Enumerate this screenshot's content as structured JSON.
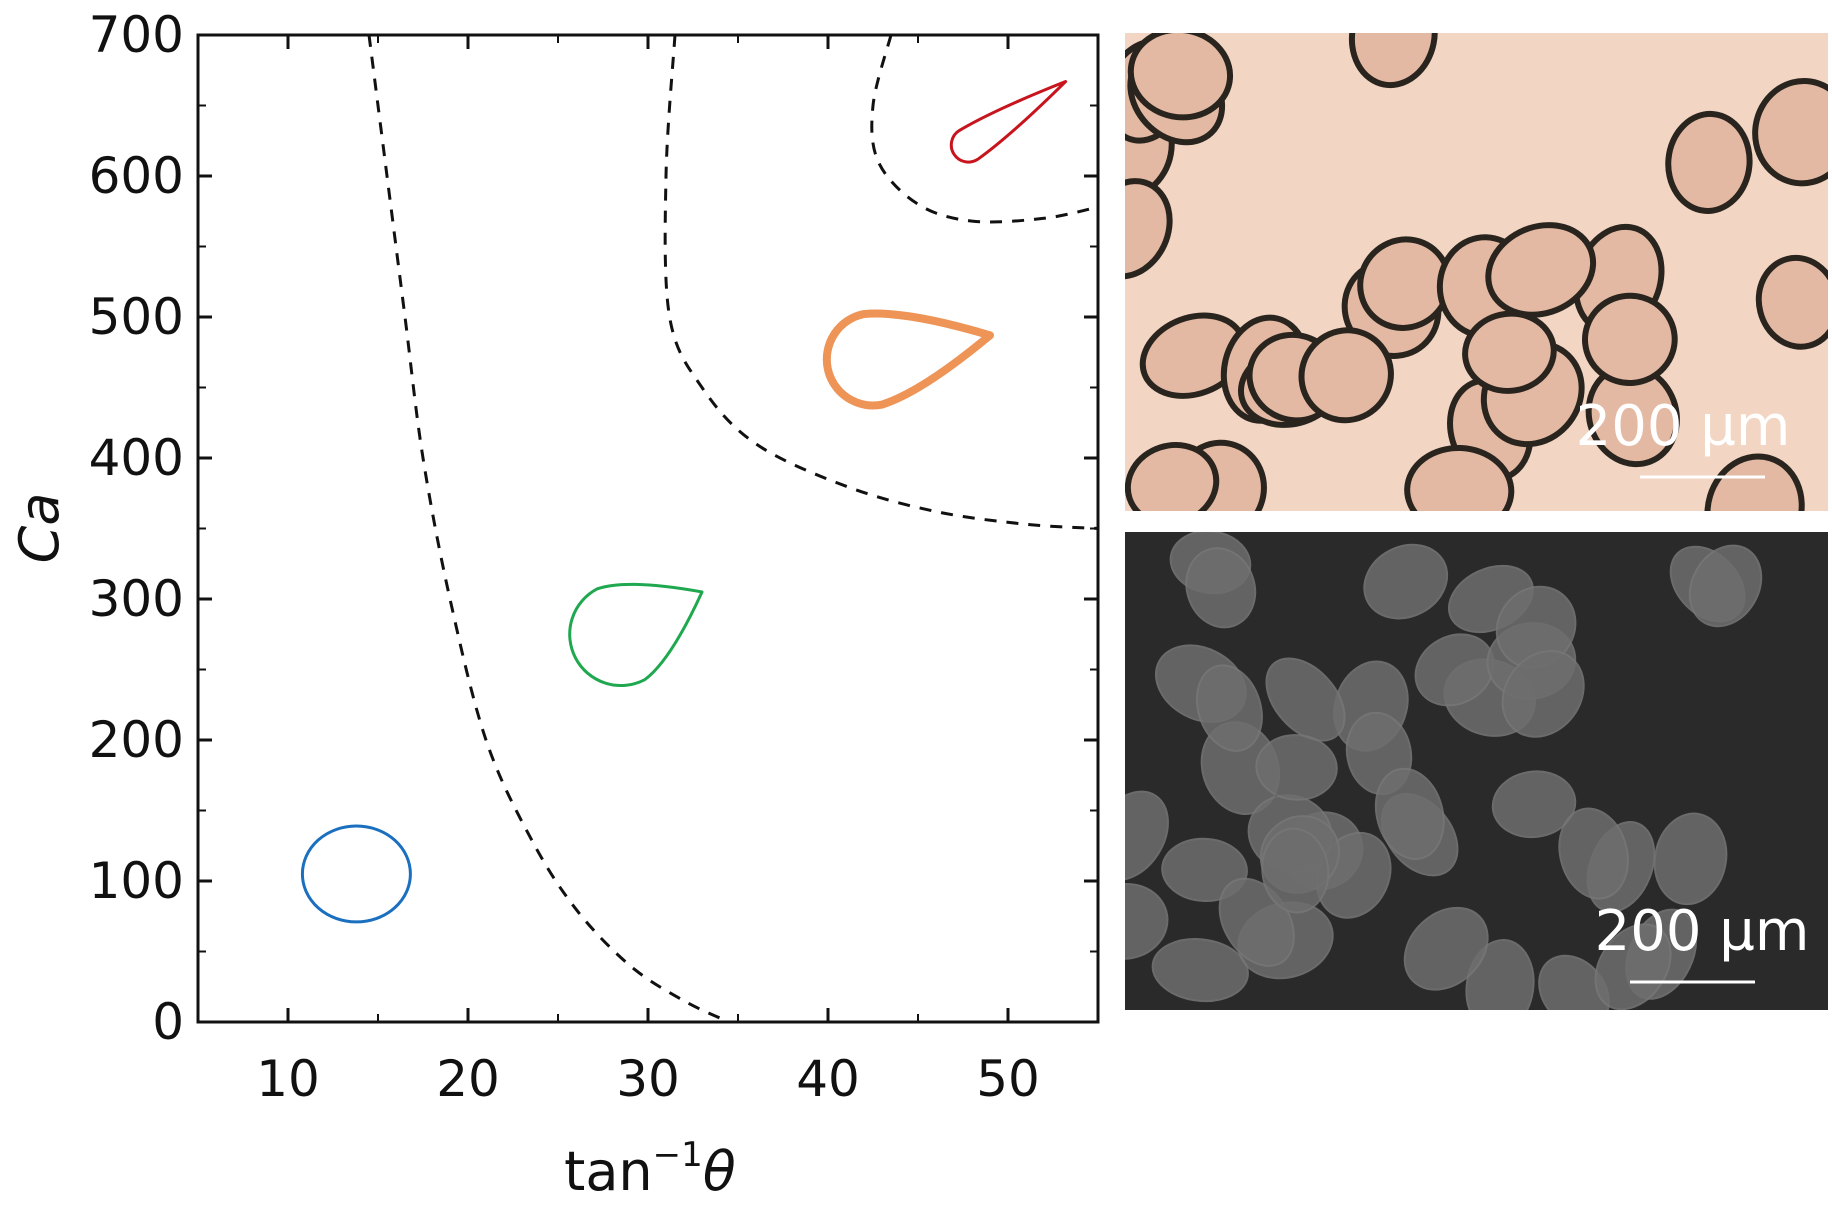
{
  "chart_data": {
    "type": "scatter",
    "xlabel_base": "tan",
    "xlabel_sup": "−1",
    "xlabel_sym": "θ",
    "ylabel": "Ca",
    "xlim": [
      5,
      55
    ],
    "ylim": [
      0,
      700
    ],
    "xticks": [
      10,
      20,
      30,
      40,
      50
    ],
    "yticks": [
      0,
      100,
      200,
      300,
      400,
      500,
      600,
      700
    ],
    "grid": false,
    "boundaries": [
      {
        "style": "dashed",
        "points": [
          [
            14.5,
            700
          ],
          [
            15.5,
            600
          ],
          [
            16.5,
            500
          ],
          [
            17.5,
            400
          ],
          [
            19,
            300
          ],
          [
            21,
            200
          ],
          [
            23.5,
            130
          ],
          [
            26,
            80
          ],
          [
            29,
            40
          ],
          [
            32,
            15
          ],
          [
            34.5,
            0
          ]
        ]
      },
      {
        "style": "dashed",
        "points": [
          [
            31.5,
            700
          ],
          [
            31,
            600
          ],
          [
            31.2,
            500
          ],
          [
            33,
            450
          ],
          [
            36,
            410
          ],
          [
            41,
            380
          ],
          [
            46,
            362
          ],
          [
            51,
            353
          ],
          [
            55,
            350
          ]
        ]
      },
      {
        "style": "dashed",
        "points": [
          [
            43.5,
            700
          ],
          [
            42.5,
            650
          ],
          [
            42.8,
            610
          ],
          [
            45,
            580
          ],
          [
            48,
            568
          ],
          [
            52,
            570
          ],
          [
            55,
            578
          ]
        ]
      }
    ],
    "shapes": [
      {
        "color": "#1a6fbf",
        "shape": "circle",
        "center": [
          13.8,
          105
        ],
        "rx": 3.0,
        "ry": 34,
        "stroke": 3
      },
      {
        "color": "#1fa84f",
        "shape": "teardrop",
        "center": [
          28.5,
          275
        ],
        "rx": 3.0,
        "ry": 36,
        "tip": [
          33,
          305
        ],
        "stroke": 3
      },
      {
        "color": "#ee9457",
        "shape": "teardrop",
        "center": [
          42.5,
          470
        ],
        "rx": 2.7,
        "ry": 21,
        "tip": [
          49,
          487
        ],
        "stroke": 8
      },
      {
        "color": "#c8141c",
        "shape": "teardrop",
        "center": [
          47.8,
          622
        ],
        "rx": 1.0,
        "ry": 11,
        "tip": [
          53.2,
          667
        ],
        "stroke": 3
      }
    ]
  },
  "micrographs": [
    {
      "name": "brightfield",
      "scale_label": "200 µm",
      "background": "#f2d5c3",
      "border": "#2a241e"
    },
    {
      "name": "polarized",
      "scale_label": "200 µm",
      "background": "#2a2a2a",
      "border": "#777777"
    }
  ]
}
